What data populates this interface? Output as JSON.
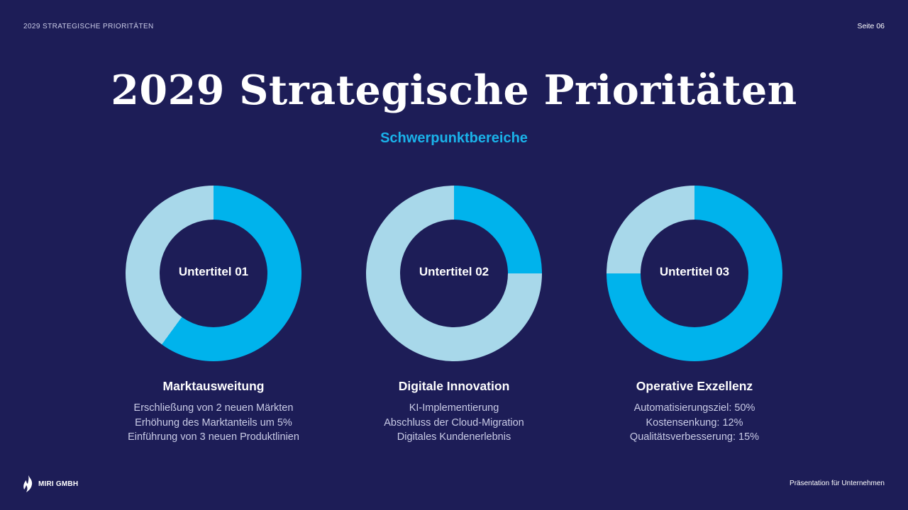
{
  "header": {
    "section_label": "2029 STRATEGISCHE PRIORITÄTEN",
    "page_number": "Seite 06"
  },
  "title": "2029 Strategische Prioritäten",
  "subtitle": "Schwerpunktbereiche",
  "colors": {
    "background": "#1d1d57",
    "accent": "#00b3ec",
    "ring_light": "#a8d8ea"
  },
  "columns": [
    {
      "donut_label": "Untertitel 01",
      "fill_fraction": 0.6,
      "heading": "Marktausweitung",
      "lines": [
        "Erschließung von 2 neuen Märkten",
        "Erhöhung des Marktanteils um 5%",
        "Einführung von 3 neuen Produktlinien"
      ]
    },
    {
      "donut_label": "Untertitel 02",
      "fill_fraction": 0.25,
      "heading": "Digitale Innovation",
      "lines": [
        "KI-Implementierung",
        "Abschluss der Cloud-Migration",
        "Digitales Kundenerlebnis"
      ]
    },
    {
      "donut_label": "Untertitel 03",
      "fill_fraction": 0.75,
      "heading": "Operative Exzellenz",
      "lines": [
        "Automatisierungsziel: 50%",
        "Kostensenkung: 12%",
        "Qualitätsverbesserung: 15%"
      ]
    }
  ],
  "footer": {
    "logo_text": "MIRI GMBH",
    "logo_icon": "flame-icon",
    "right_text": "Präsentation für Unternehmen"
  }
}
